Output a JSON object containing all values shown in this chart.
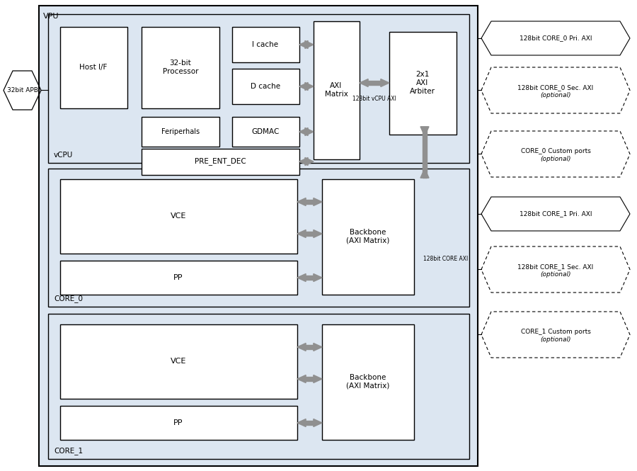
{
  "bg_color": "#dce6f1",
  "box_color": "#ffffff",
  "box_edge": "#000000",
  "arrow_color": "#909090",
  "fig_bg": "#ffffff",
  "vpu_label": "VPU",
  "vcpu_label": "vCPU",
  "core0_label": "CORE_0",
  "core1_label": "CORE_1",
  "apb_label": "32bit APB",
  "host_label": "Host I/F",
  "proc_label": "32-bit\nProcessor",
  "icache_label": "I cache",
  "dcache_label": "D cache",
  "periph_label": "Feriperhals",
  "gdmac_label": "GDMAC",
  "pre_label": "PRE_ENT_DEC",
  "axi_matrix_label": "AXI\nMatrix",
  "arbiter_label": "2x1\nAXI\nArbiter",
  "vcpu_axi_label": "128bit vCPU AXI",
  "vce_label": "VCE",
  "pp_label": "PP",
  "backbone_label": "Backbone\n(AXI Matrix)",
  "core_axi_label": "128bit CORE AXI",
  "pri0_label": "128bit CORE_0 Pri. AXI",
  "sec0_label": "128bit CORE_0 Sec. AXI\n(optional)",
  "cust0_label": "CORE_0 Custom ports\n(optional)",
  "pri1_label": "128bit CORE_1 Pri. AXI",
  "sec1_label": "128bit CORE_1 Sec. AXI\n(optional)",
  "cust1_label": "CORE_1 Custom ports\n(optional)"
}
